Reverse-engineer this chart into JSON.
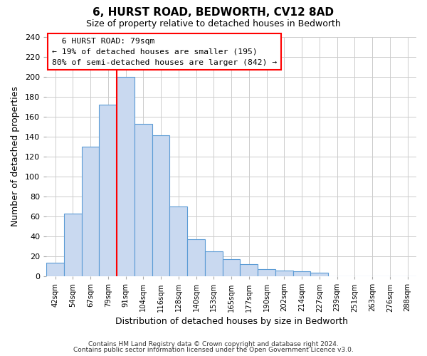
{
  "title": "6, HURST ROAD, BEDWORTH, CV12 8AD",
  "subtitle": "Size of property relative to detached houses in Bedworth",
  "xlabel": "Distribution of detached houses by size in Bedworth",
  "ylabel": "Number of detached properties",
  "bar_labels": [
    "42sqm",
    "54sqm",
    "67sqm",
    "79sqm",
    "91sqm",
    "104sqm",
    "116sqm",
    "128sqm",
    "140sqm",
    "153sqm",
    "165sqm",
    "177sqm",
    "190sqm",
    "202sqm",
    "214sqm",
    "227sqm",
    "239sqm",
    "251sqm",
    "263sqm",
    "276sqm",
    "288sqm"
  ],
  "bar_values": [
    14,
    63,
    130,
    172,
    200,
    153,
    141,
    70,
    37,
    25,
    17,
    12,
    7,
    6,
    5,
    4,
    0,
    0,
    0,
    0,
    0
  ],
  "bar_color": "#c9d9f0",
  "bar_edge_color": "#5b9bd5",
  "vline_color": "#ff0000",
  "ylim": [
    0,
    240
  ],
  "yticks": [
    0,
    20,
    40,
    60,
    80,
    100,
    120,
    140,
    160,
    180,
    200,
    220,
    240
  ],
  "annotation_title": "6 HURST ROAD: 79sqm",
  "annotation_line1": "← 19% of detached houses are smaller (195)",
  "annotation_line2": "80% of semi-detached houses are larger (842) →",
  "footer1": "Contains HM Land Registry data © Crown copyright and database right 2024.",
  "footer2": "Contains public sector information licensed under the Open Government Licence v3.0.",
  "background_color": "#ffffff",
  "grid_color": "#cccccc"
}
